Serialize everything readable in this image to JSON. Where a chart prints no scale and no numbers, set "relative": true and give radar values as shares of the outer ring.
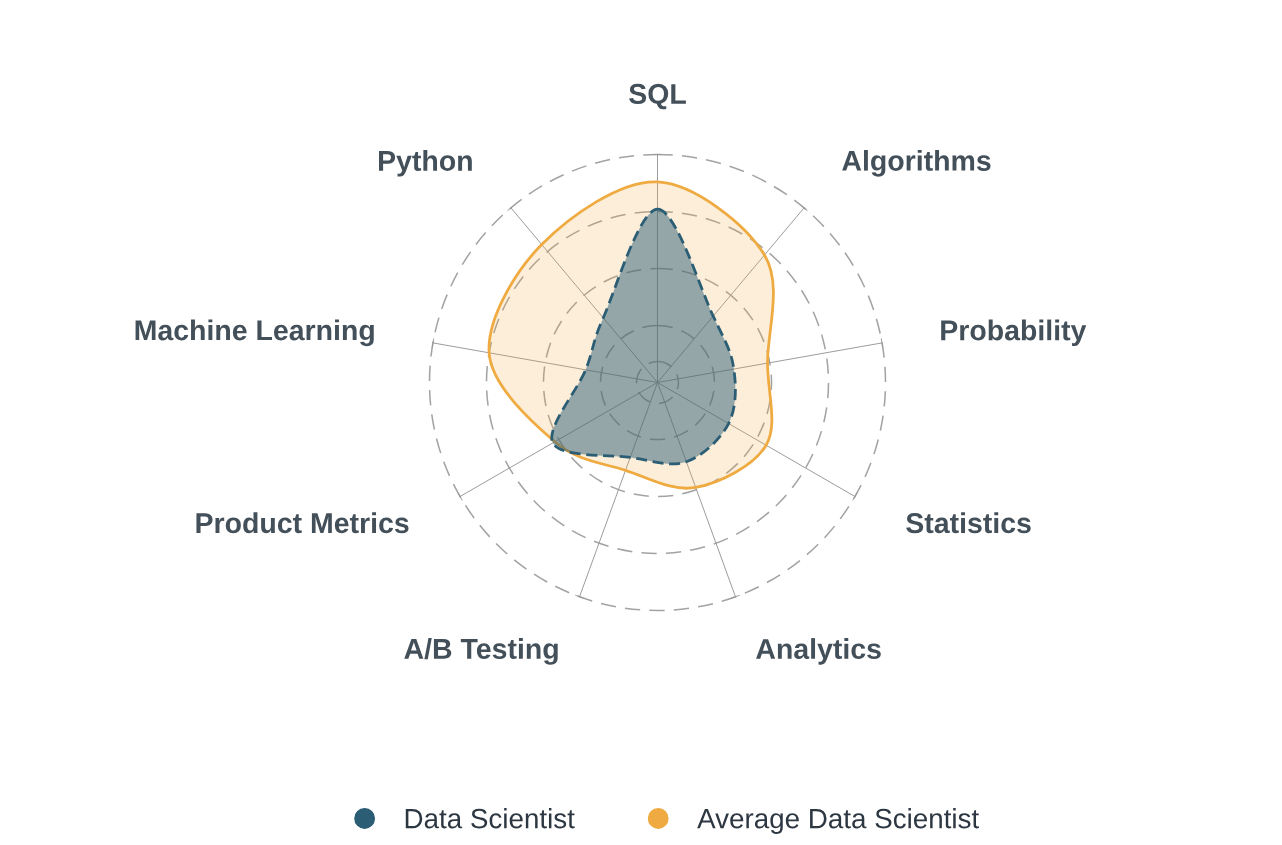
{
  "chart_data": {
    "type": "radar",
    "relative": true,
    "categories": [
      "SQL",
      "Algorithms",
      "Probability",
      "Statistics",
      "Analytics",
      "A/B Testing",
      "Product Metrics",
      "Machine Learning",
      "Python"
    ],
    "series": [
      {
        "name": "Data Scientist",
        "color": "#2b5d75",
        "line_style": "dashed",
        "values": [
          0.76,
          0.38,
          0.34,
          0.36,
          0.37,
          0.35,
          0.53,
          0.32,
          0.37
        ]
      },
      {
        "name": "Average Data Scientist",
        "color": "#efab41",
        "line_style": "solid",
        "values": [
          0.88,
          0.73,
          0.49,
          0.55,
          0.49,
          0.41,
          0.52,
          0.75,
          0.79
        ]
      }
    ],
    "grid": true,
    "legend": "bottom"
  }
}
